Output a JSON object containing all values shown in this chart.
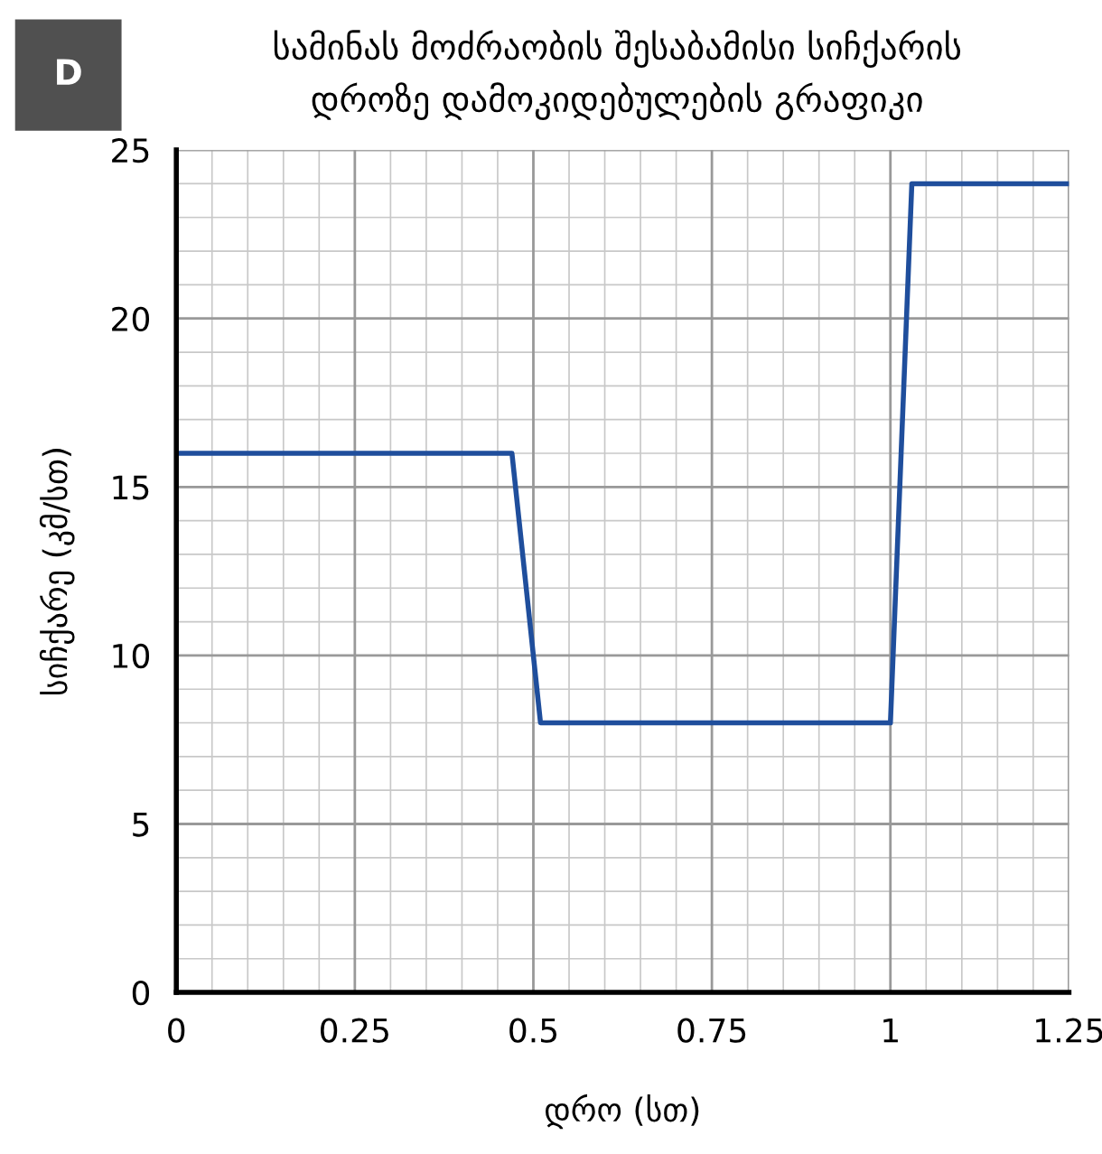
{
  "chart_data": {
    "type": "line",
    "title": "სამინას მოძრაობის შესაბამისი სიჩქარის\nდროზე დამოკიდებულების გრაფიკი",
    "xlabel": "დრო (სთ)",
    "ylabel": "სიჩქარე (კმ/სთ)",
    "annotations": [
      "D"
    ],
    "x": [
      0,
      0.47,
      0.51,
      1.0,
      1.03,
      1.25
    ],
    "series": [
      {
        "color": "#1f4e9c",
        "values": [
          16,
          16,
          8,
          8,
          24,
          24
        ]
      }
    ],
    "xlim": [
      0,
      1.25
    ],
    "xticks": [
      0,
      0.25,
      0.5,
      0.75,
      1,
      1.25
    ],
    "ylim": [
      0,
      25
    ],
    "yticks": [
      0,
      5,
      10,
      15,
      20,
      25
    ],
    "grid": true,
    "legend": false,
    "marker": "none",
    "line_style": "solid"
  }
}
